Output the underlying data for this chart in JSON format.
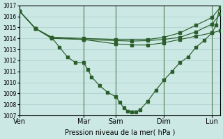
{
  "bg_color": "#cce8e4",
  "grid_color": "#a8ccc8",
  "line_color": "#2a5e2a",
  "xlabel": "Pression niveau de la mer( hPa )",
  "ylim": [
    1007,
    1017
  ],
  "yticks": [
    1007,
    1008,
    1009,
    1010,
    1011,
    1012,
    1013,
    1014,
    1015,
    1016,
    1017
  ],
  "xtick_labels": [
    "Ven",
    "Mar",
    "Sam",
    "Dim",
    "Lun"
  ],
  "xtick_positions": [
    0,
    8,
    12,
    18,
    24
  ],
  "vlines_x": [
    0,
    8,
    12,
    18,
    24
  ],
  "s1_x": [
    0,
    2,
    4,
    8,
    12,
    16,
    18,
    20,
    22,
    24,
    25
  ],
  "s1_y": [
    1016.5,
    1014.9,
    1014.1,
    1014.0,
    1013.9,
    1013.9,
    1014.1,
    1014.5,
    1015.2,
    1015.9,
    1016.8
  ],
  "s2_x": [
    0,
    2,
    4,
    8,
    12,
    14,
    16,
    18,
    20,
    22,
    24,
    25
  ],
  "s2_y": [
    1016.5,
    1014.9,
    1014.1,
    1013.9,
    1013.8,
    1013.75,
    1013.8,
    1013.9,
    1014.1,
    1014.6,
    1015.3,
    1016.2
  ],
  "s3_x": [
    0,
    2,
    4,
    8,
    12,
    14,
    16,
    18,
    20,
    22,
    24,
    25
  ],
  "s3_y": [
    1016.5,
    1014.9,
    1014.0,
    1013.9,
    1013.5,
    1013.4,
    1013.4,
    1013.6,
    1013.9,
    1014.2,
    1014.5,
    1014.7
  ],
  "s4_x": [
    0,
    2,
    4,
    5,
    6,
    7,
    8,
    8.5,
    9,
    10,
    11,
    12,
    12.5,
    13,
    13.5,
    14,
    14.5,
    15,
    16,
    17,
    18,
    19,
    20,
    21,
    22,
    23,
    24,
    24.5,
    25
  ],
  "s4_y": [
    1016.5,
    1014.9,
    1014.1,
    1013.2,
    1012.3,
    1011.8,
    1011.8,
    1011.2,
    1010.5,
    1009.7,
    1009.1,
    1008.7,
    1008.2,
    1007.7,
    1007.4,
    1007.3,
    1007.3,
    1007.5,
    1008.3,
    1009.3,
    1010.2,
    1011.0,
    1011.8,
    1012.3,
    1013.2,
    1013.8,
    1014.5,
    1015.2,
    1017.1
  ]
}
